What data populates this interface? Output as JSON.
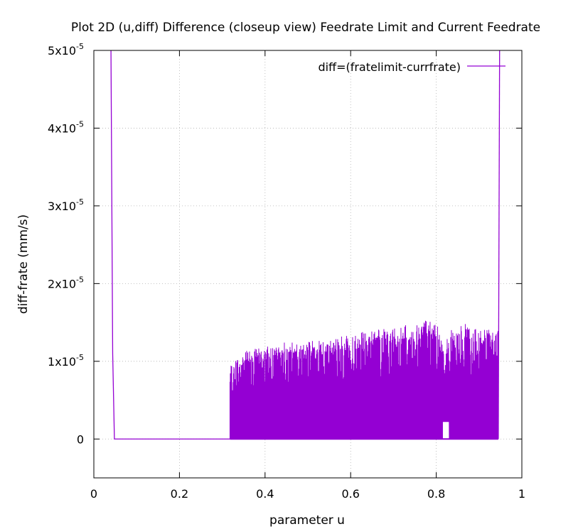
{
  "chart_data": {
    "type": "line",
    "title": "Plot 2D (u,diff) Difference (closeup view) Feedrate Limit and Current Feedrate",
    "xlabel": "parameter u",
    "ylabel": "diff-frate (mm/s)",
    "xlim": [
      0,
      1
    ],
    "ylim": [
      -5e-06,
      5e-05
    ],
    "x_ticks": [
      {
        "value": 0,
        "label": "0"
      },
      {
        "value": 0.2,
        "label": "0.2"
      },
      {
        "value": 0.4,
        "label": "0.4"
      },
      {
        "value": 0.6,
        "label": "0.6"
      },
      {
        "value": 0.8,
        "label": "0.8"
      },
      {
        "value": 1,
        "label": "1"
      }
    ],
    "y_ticks": [
      {
        "value": 0,
        "mant": "0",
        "exp": ""
      },
      {
        "value": 1e-05,
        "mant": "1x10",
        "exp": "-5"
      },
      {
        "value": 2e-05,
        "mant": "2x10",
        "exp": "-5"
      },
      {
        "value": 3e-05,
        "mant": "3x10",
        "exp": "-5"
      },
      {
        "value": 4e-05,
        "mant": "4x10",
        "exp": "-5"
      },
      {
        "value": 5e-05,
        "mant": "5x10",
        "exp": "-5"
      }
    ],
    "grid": true,
    "legend_position": "top-right",
    "series": [
      {
        "name": "diff=(fratelimit-currfrate)",
        "color": "#9400d3",
        "points": [
          [
            0.04,
            5e-05
          ],
          [
            0.044,
            1.1e-05
          ],
          [
            0.048,
            0
          ],
          [
            0.1,
            0
          ],
          [
            0.2,
            0
          ],
          [
            0.318,
            0
          ]
        ],
        "oscillation": {
          "x_start": 0.318,
          "x_end": 0.945,
          "baseline": 0,
          "envelope": [
            [
              0.318,
              9.5e-06
            ],
            [
              0.33,
              1e-05
            ],
            [
              0.36,
              1.15e-05
            ],
            [
              0.4,
              1.2e-05
            ],
            [
              0.45,
              1.25e-05
            ],
            [
              0.5,
              1.25e-05
            ],
            [
              0.55,
              1.3e-05
            ],
            [
              0.6,
              1.35e-05
            ],
            [
              0.65,
              1.4e-05
            ],
            [
              0.7,
              1.45e-05
            ],
            [
              0.75,
              1.5e-05
            ],
            [
              0.78,
              1.55e-05
            ],
            [
              0.8,
              1.5e-05
            ],
            [
              0.82,
              1.25e-05
            ],
            [
              0.84,
              1.45e-05
            ],
            [
              0.87,
              1.5e-05
            ],
            [
              0.9,
              1.45e-05
            ],
            [
              0.93,
              1.45e-05
            ],
            [
              0.945,
              1.5e-05
            ]
          ],
          "final_spike": [
            [
              0.945,
              0
            ],
            [
              0.948,
              5e-05
            ]
          ]
        }
      }
    ]
  }
}
